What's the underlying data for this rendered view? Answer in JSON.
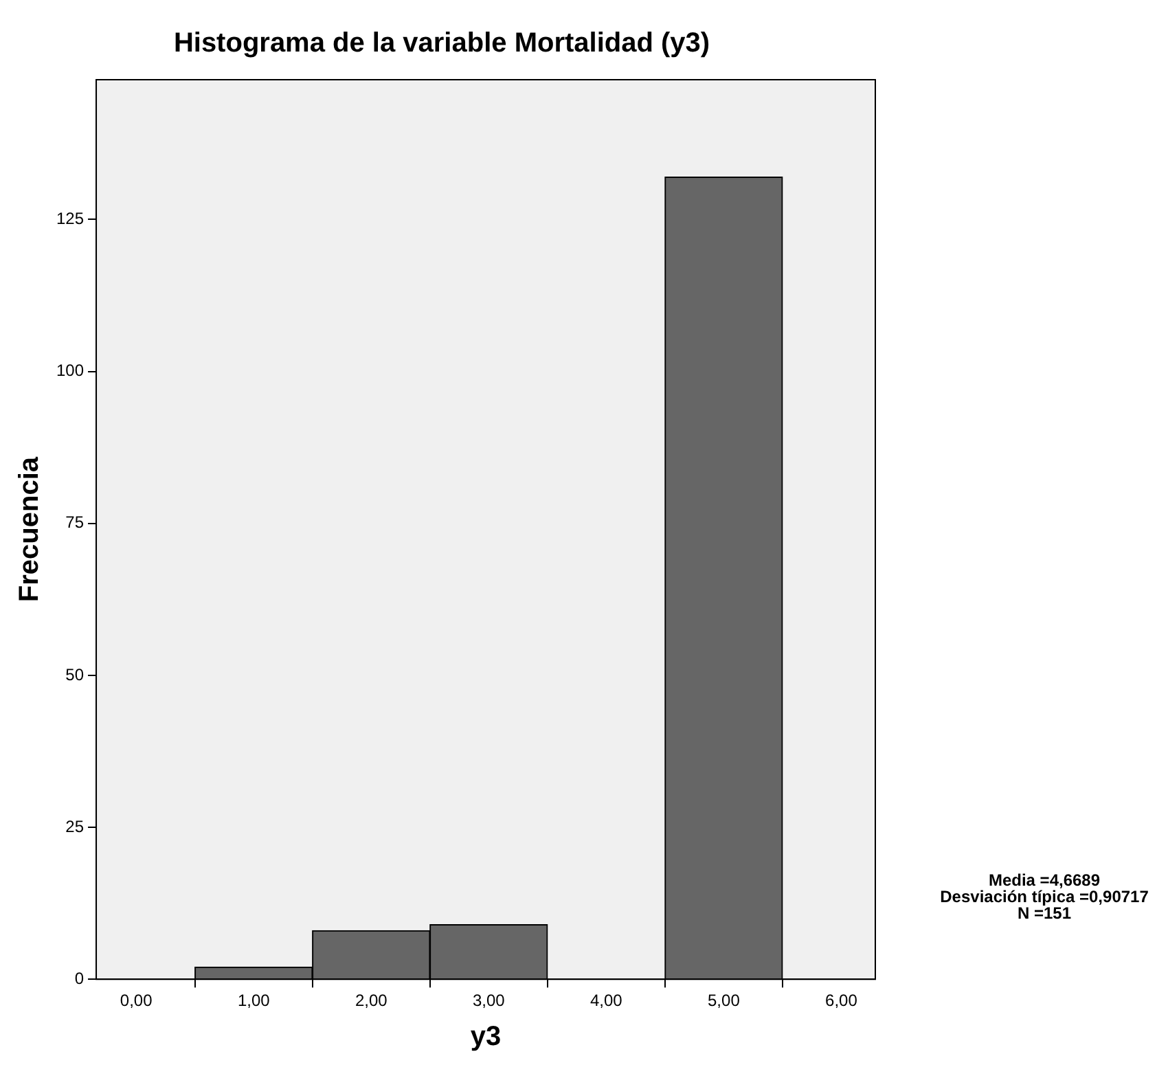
{
  "chart_data": {
    "type": "histogram",
    "title": "Histograma de la variable Mortalidad (y3)",
    "xlabel": "y3",
    "ylabel": "Frecuencia",
    "bins": [
      0.5,
      1.5,
      2.5,
      3.5,
      4.5,
      5.5
    ],
    "values": [
      2,
      8,
      9,
      0,
      132
    ],
    "color": "#666666",
    "xlim": [
      -0.34,
      6.29
    ],
    "xticks": [
      {
        "value": 0,
        "label": "0,00"
      },
      {
        "value": 1,
        "label": "1,00"
      },
      {
        "value": 2,
        "label": "2,00"
      },
      {
        "value": 3,
        "label": "3,00"
      },
      {
        "value": 4,
        "label": "4,00"
      },
      {
        "value": 5,
        "label": "5,00"
      },
      {
        "value": 6,
        "label": "6,00"
      }
    ],
    "ylim": [
      0,
      148
    ],
    "yticks": [
      0,
      25,
      50,
      75,
      100,
      125
    ],
    "grid": false,
    "legend": false,
    "annotations": [
      "Media =4,6689",
      "Desviación típica =0,90717",
      "N =151"
    ]
  }
}
